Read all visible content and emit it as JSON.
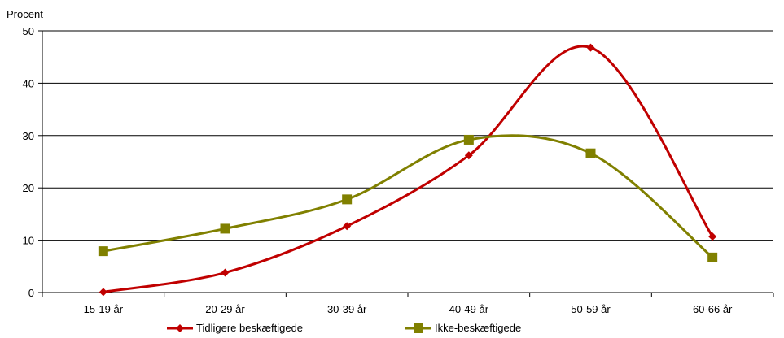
{
  "chart_data": {
    "type": "line",
    "ylabel": "Procent",
    "ylim": [
      0,
      50
    ],
    "yticks": [
      0,
      10,
      20,
      30,
      40,
      50
    ],
    "grid": true,
    "smooth": true,
    "legend_position": "bottom",
    "categories": [
      "15-19 år",
      "20-29 år",
      "30-39 år",
      "40-49 år",
      "50-59 år",
      "60-66 år"
    ],
    "series": [
      {
        "name": "Tidligere beskæftigede",
        "color": "#C00000",
        "marker": "diamond",
        "values": [
          0.1,
          3.8,
          12.7,
          26.2,
          46.8,
          10.7
        ]
      },
      {
        "name": "Ikke-beskæftigede",
        "color": "#808000",
        "marker": "square",
        "values": [
          7.9,
          12.2,
          17.8,
          29.2,
          26.6,
          6.7
        ]
      }
    ]
  }
}
